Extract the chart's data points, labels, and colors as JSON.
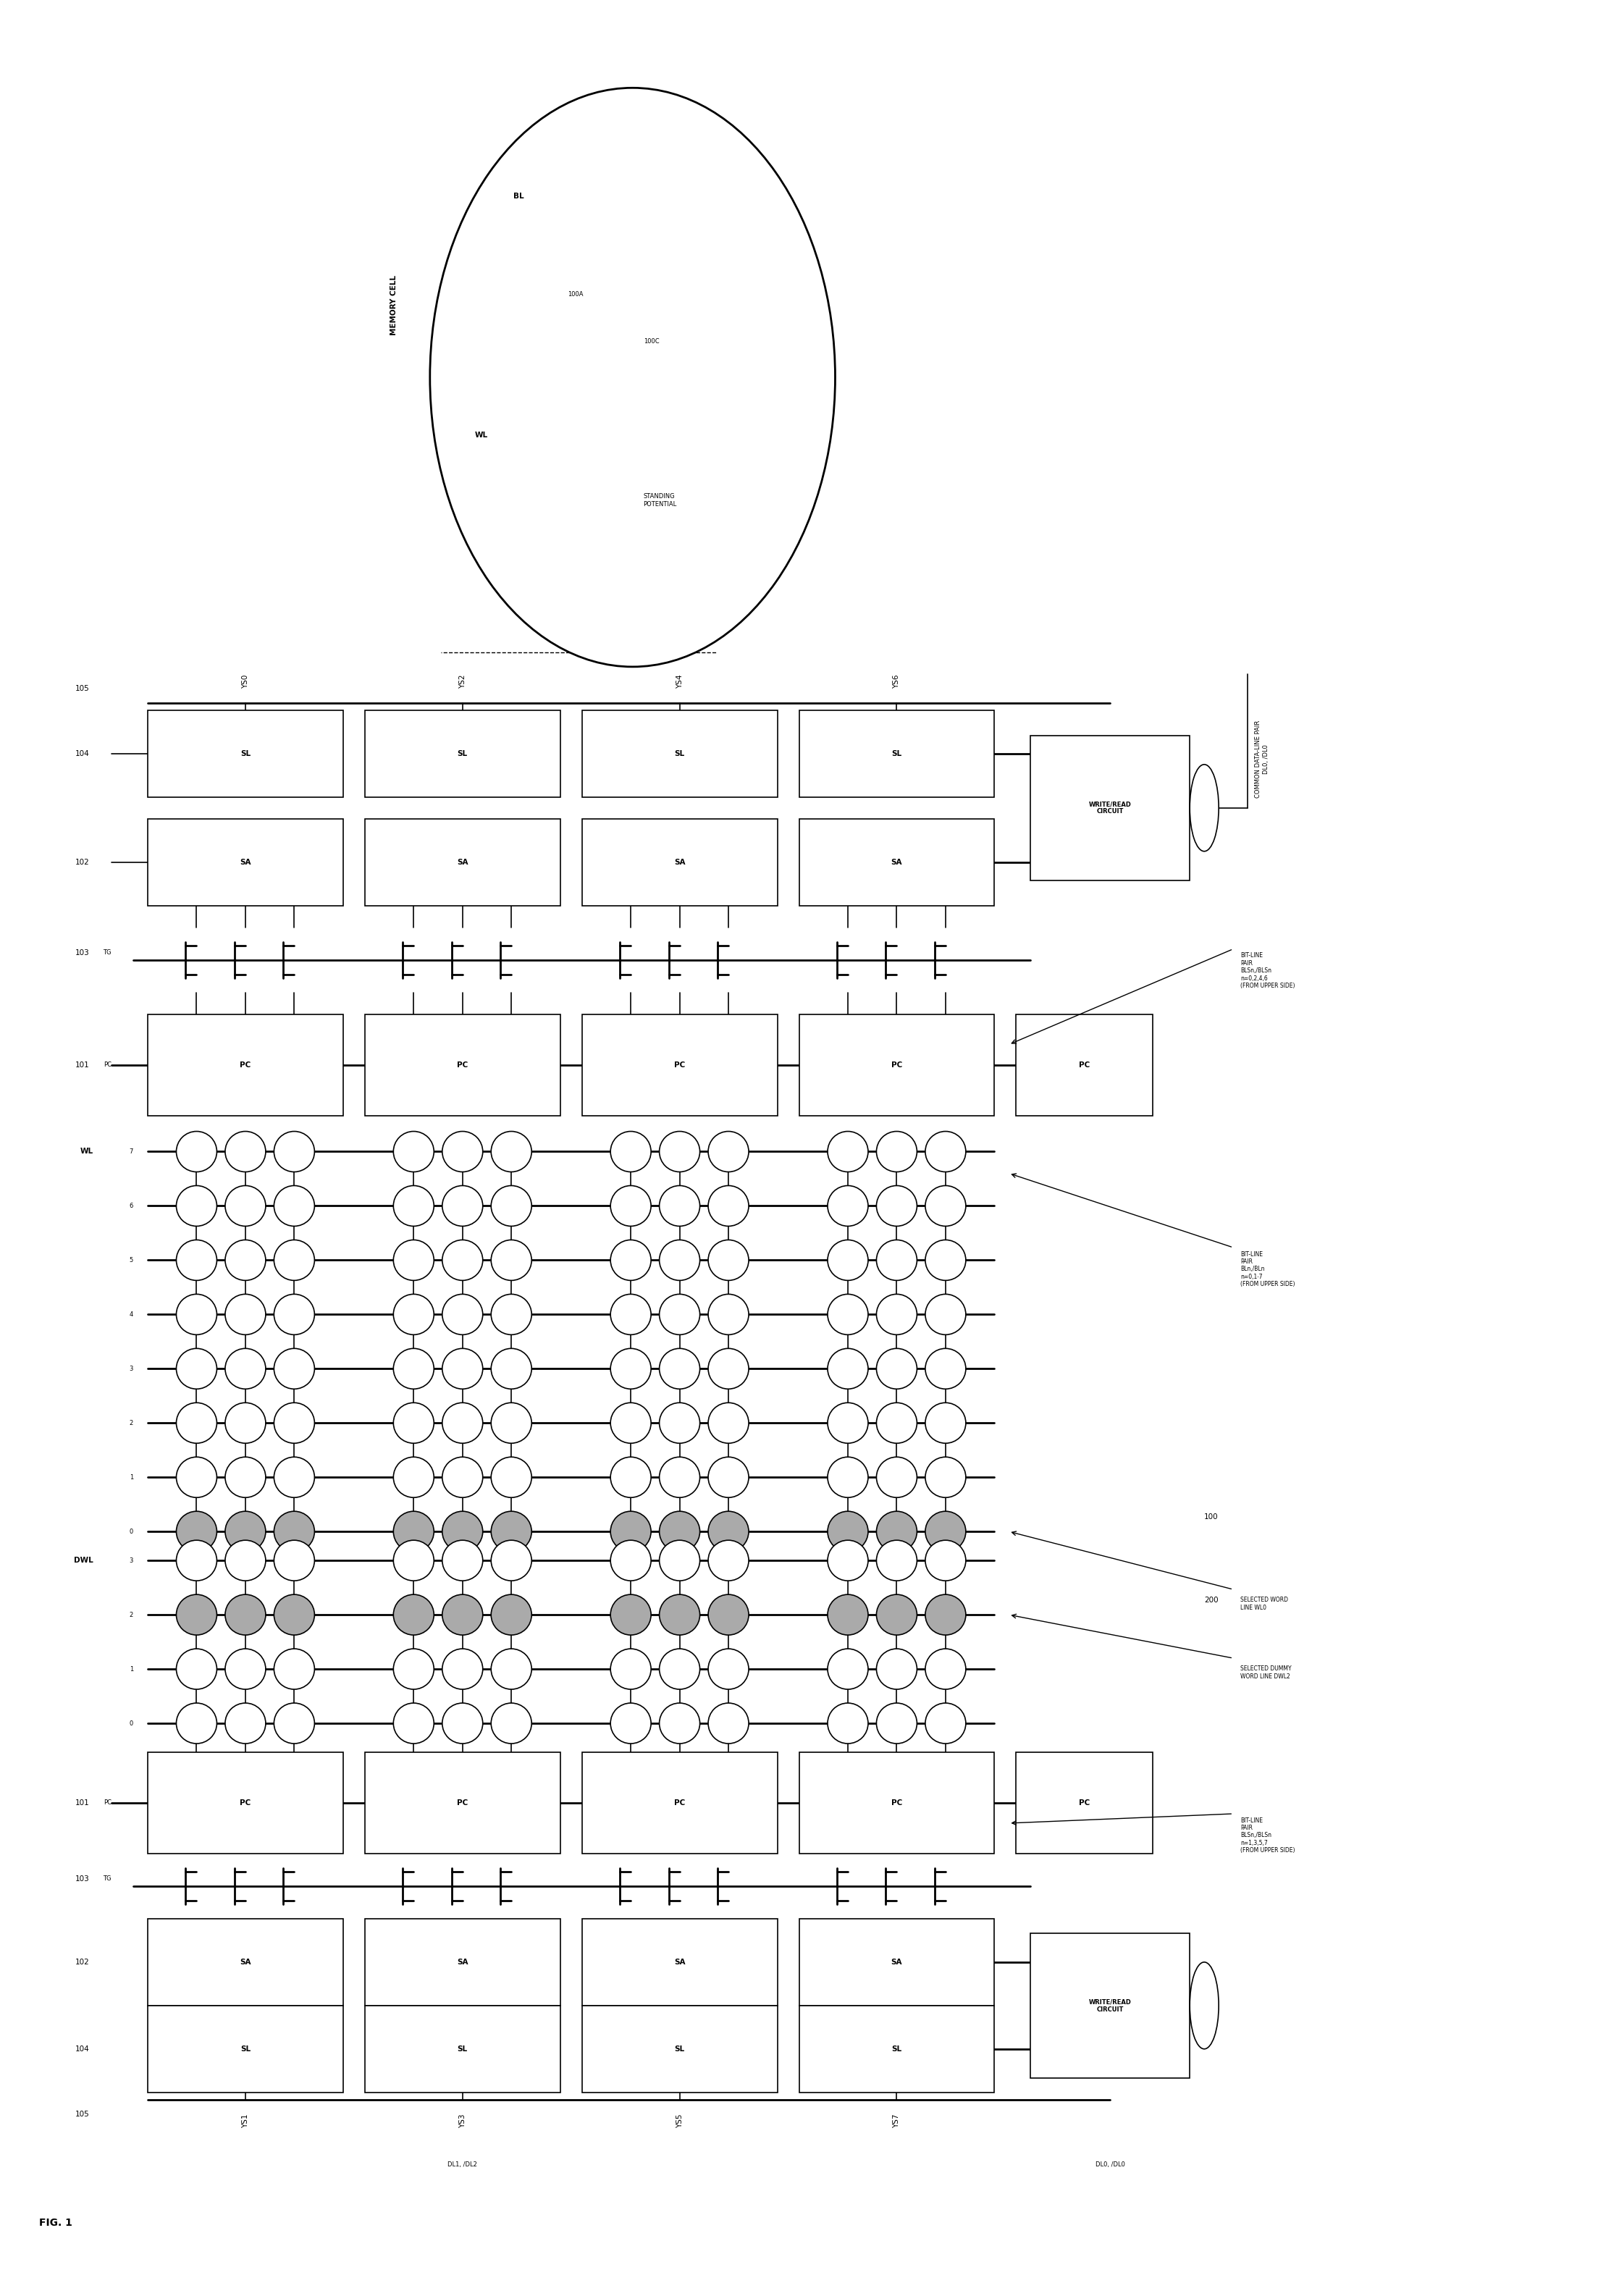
{
  "fig_width": 22.07,
  "fig_height": 31.71,
  "bg_color": "#ffffff",
  "ys_labels_top": [
    "YS0",
    "YS2",
    "YS4",
    "YS6"
  ],
  "ys_labels_bot": [
    "YS1",
    "YS3",
    "YS5",
    "YS7"
  ],
  "wl_labels": [
    "7",
    "6",
    "5",
    "4",
    "3",
    "2",
    "1",
    "0"
  ],
  "dwl_labels": [
    "3",
    "2",
    "1",
    "0"
  ],
  "title": "FIG. 1"
}
